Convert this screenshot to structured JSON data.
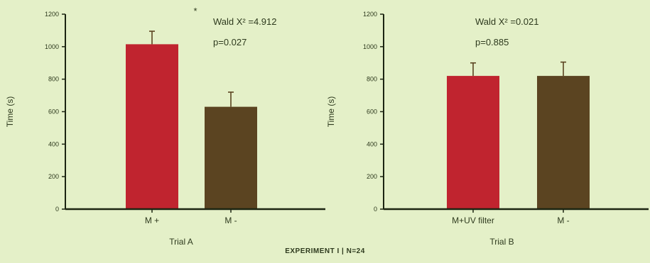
{
  "caption": "EXPERIMENT I | N=24",
  "colors": {
    "background": "#e4f0c8",
    "bar_red": "#c0242f",
    "bar_brown": "#5b4421",
    "axis": "#1c2512",
    "error_bar": "#5b4421"
  },
  "chart_data": [
    {
      "type": "bar",
      "title": "",
      "xlabel": "Trial A",
      "ylabel": "Time (s)",
      "ylim": [
        0,
        1200
      ],
      "yticks": [
        0,
        200,
        400,
        600,
        800,
        1000,
        1200
      ],
      "categories": [
        "M +",
        "M -"
      ],
      "values": [
        1015,
        630
      ],
      "errors": [
        80,
        90
      ],
      "bar_colors": [
        "#c0242f",
        "#5b4421"
      ],
      "significance": "*",
      "stat_lines": [
        "Wald X² =4.912",
        "p=0.027"
      ],
      "grid": false,
      "legend": "none"
    },
    {
      "type": "bar",
      "title": "",
      "xlabel": "Trial B",
      "ylabel": "Time (s)",
      "ylim": [
        0,
        1200
      ],
      "yticks": [
        0,
        200,
        400,
        600,
        800,
        1000,
        1200
      ],
      "categories": [
        "M+UV filter",
        "M -"
      ],
      "values": [
        820,
        820
      ],
      "errors": [
        80,
        85
      ],
      "bar_colors": [
        "#c0242f",
        "#5b4421"
      ],
      "significance": "",
      "stat_lines": [
        "Wald X² =0.021",
        "p=0.885"
      ],
      "grid": false,
      "legend": "none"
    }
  ]
}
